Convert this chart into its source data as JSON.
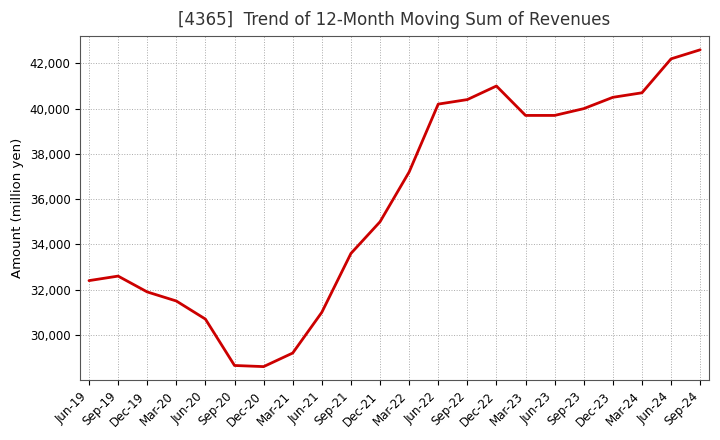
{
  "title": "[4365]  Trend of 12-Month Moving Sum of Revenues",
  "ylabel": "Amount (million yen)",
  "line_color": "#cc0000",
  "background_color": "#ffffff",
  "plot_bg_color": "#ffffff",
  "grid_color": "#aaaaaa",
  "title_fontsize": 12,
  "label_fontsize": 9.5,
  "tick_fontsize": 8.5,
  "labels": [
    "Jun-19",
    "Sep-19",
    "Dec-19",
    "Mar-20",
    "Jun-20",
    "Sep-20",
    "Dec-20",
    "Mar-21",
    "Jun-21",
    "Sep-21",
    "Dec-21",
    "Mar-22",
    "Jun-22",
    "Sep-22",
    "Dec-22",
    "Mar-23",
    "Jun-23",
    "Sep-23",
    "Dec-23",
    "Mar-24",
    "Jun-24",
    "Sep-24"
  ],
  "values": [
    32400,
    32600,
    31900,
    31500,
    30700,
    28650,
    28600,
    29200,
    31000,
    33600,
    35000,
    37200,
    40200,
    40400,
    41000,
    39700,
    39700,
    40000,
    40500,
    40700,
    42200,
    42600
  ],
  "ylim_min": 28000,
  "ylim_max": 43200,
  "yticks": [
    30000,
    32000,
    34000,
    36000,
    38000,
    40000,
    42000
  ]
}
